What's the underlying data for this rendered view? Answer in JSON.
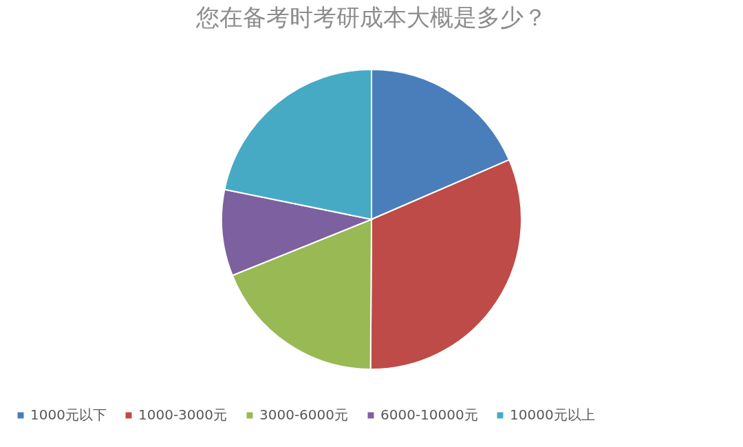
{
  "chart_data": {
    "type": "pie",
    "title": "您在备考时考研成本大概是多少？",
    "categories": [
      "1000元以下",
      "1000-3000元",
      "3000-6000元",
      "6000-10000元",
      "10000元以上"
    ],
    "values": [
      18.5,
      31.6,
      18.8,
      9.3,
      21.8
    ],
    "colors": [
      "#4a7ebb",
      "#be4b48",
      "#98b954",
      "#7d60a0",
      "#46aac5"
    ],
    "legend": "bottom"
  }
}
